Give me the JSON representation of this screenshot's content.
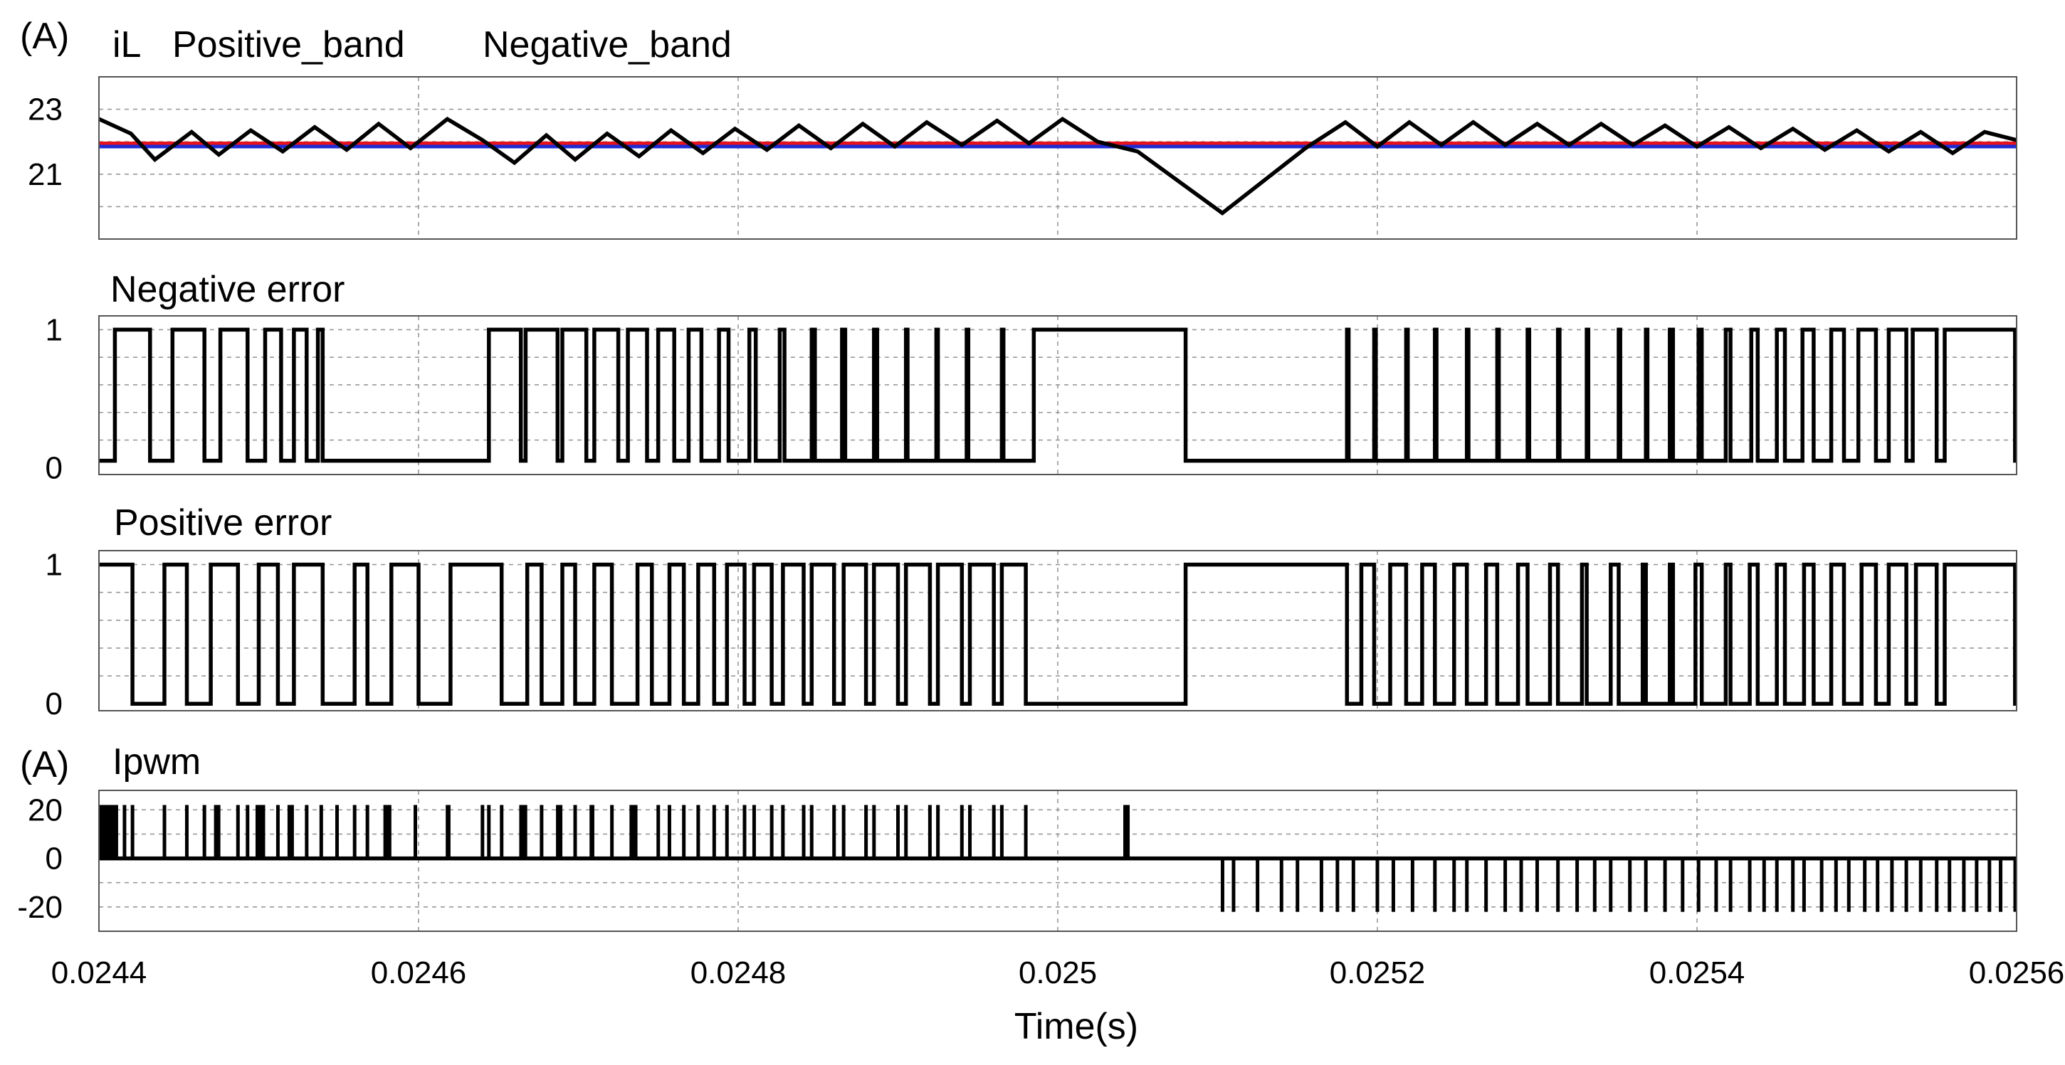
{
  "chart_data": [
    {
      "type": "line",
      "unit": "(A)",
      "title": "iL",
      "legend": [
        {
          "name": "Positive_band",
          "color": "#e8121c"
        },
        {
          "name": "Negative_band",
          "color": "#1f77c4"
        }
      ],
      "band_colors": {
        "positive": "#e8121c",
        "negative": "#1f2bd6"
      },
      "ylim": [
        19,
        24
      ],
      "yticks": [
        {
          "value": 23,
          "label": "23"
        },
        {
          "value": 21,
          "label": "21"
        }
      ],
      "grid_y": [
        23,
        22,
        21,
        20
      ],
      "bands": {
        "positive": 21.95,
        "negative": 21.85
      },
      "series": [
        {
          "color": "#000000",
          "points": [
            [
              0.0244,
              22.7
            ],
            [
              0.02442,
              22.25
            ],
            [
              0.024435,
              21.45
            ],
            [
              0.024458,
              22.3
            ],
            [
              0.024475,
              21.6
            ],
            [
              0.024495,
              22.35
            ],
            [
              0.024515,
              21.7
            ],
            [
              0.024535,
              22.45
            ],
            [
              0.024555,
              21.75
            ],
            [
              0.024575,
              22.55
            ],
            [
              0.024595,
              21.8
            ],
            [
              0.024618,
              22.7
            ],
            [
              0.02464,
              22.05
            ],
            [
              0.02466,
              21.35
            ],
            [
              0.02468,
              22.2
            ],
            [
              0.024698,
              21.45
            ],
            [
              0.024718,
              22.25
            ],
            [
              0.024738,
              21.55
            ],
            [
              0.024758,
              22.35
            ],
            [
              0.024778,
              21.65
            ],
            [
              0.024798,
              22.4
            ],
            [
              0.024818,
              21.75
            ],
            [
              0.024838,
              22.5
            ],
            [
              0.024858,
              21.8
            ],
            [
              0.024878,
              22.55
            ],
            [
              0.024898,
              21.85
            ],
            [
              0.024918,
              22.6
            ],
            [
              0.02494,
              21.9
            ],
            [
              0.024962,
              22.65
            ],
            [
              0.024982,
              21.95
            ],
            [
              0.025003,
              22.7
            ],
            [
              0.025025,
              22.0
            ],
            [
              0.02505,
              21.7
            ],
            [
              0.025103,
              19.8
            ],
            [
              0.025155,
              21.8
            ],
            [
              0.02518,
              22.6
            ],
            [
              0.0252,
              21.85
            ],
            [
              0.02522,
              22.6
            ],
            [
              0.02524,
              21.9
            ],
            [
              0.02526,
              22.6
            ],
            [
              0.02528,
              21.9
            ],
            [
              0.0253,
              22.55
            ],
            [
              0.02532,
              21.9
            ],
            [
              0.02534,
              22.55
            ],
            [
              0.02536,
              21.9
            ],
            [
              0.02538,
              22.5
            ],
            [
              0.0254,
              21.85
            ],
            [
              0.02542,
              22.45
            ],
            [
              0.02544,
              21.8
            ],
            [
              0.02546,
              22.4
            ],
            [
              0.02548,
              21.75
            ],
            [
              0.0255,
              22.35
            ],
            [
              0.02552,
              21.7
            ],
            [
              0.02554,
              22.3
            ],
            [
              0.02556,
              21.65
            ],
            [
              0.02558,
              22.3
            ],
            [
              0.0256,
              22.05
            ]
          ]
        }
      ]
    },
    {
      "type": "line",
      "title": "Negative error",
      "ylim": [
        -0.05,
        1.1
      ],
      "yticks": [
        {
          "value": 1,
          "label": "1"
        },
        {
          "value": 0,
          "label": "0"
        }
      ],
      "grid_y": [
        1,
        0.8,
        0.6,
        0.4,
        0.2
      ],
      "levels": [
        0.05,
        1
      ],
      "initial": 0.05,
      "transitions": [
        0.02441,
        0.024432,
        0.024446,
        0.024466,
        0.024476,
        0.024493,
        0.024504,
        0.024514,
        0.024522,
        0.02453,
        0.024537,
        0.02454,
        0.024644,
        0.024664,
        0.024667,
        0.024687,
        0.02469,
        0.024705,
        0.02471,
        0.024725,
        0.024731,
        0.024743,
        0.02475,
        0.02476,
        0.024769,
        0.024777,
        0.024788,
        0.024794,
        0.024807,
        0.024811,
        0.024826,
        0.024829,
        0.024846,
        0.024848,
        0.024865,
        0.024867,
        0.024885,
        0.024887,
        0.024905,
        0.024906,
        0.024924,
        0.024925,
        0.024943,
        0.024944,
        0.024965,
        0.024966,
        0.024985,
        0.02508,
        0.025181,
        0.025182,
        0.025198,
        0.025199,
        0.025218,
        0.025219,
        0.025236,
        0.025237,
        0.025256,
        0.025257,
        0.025275,
        0.025276,
        0.025294,
        0.025295,
        0.025313,
        0.025314,
        0.025331,
        0.025332,
        0.025351,
        0.025352,
        0.025368,
        0.025369,
        0.025383,
        0.025385,
        0.025401,
        0.025403,
        0.025418,
        0.025421,
        0.025434,
        0.025438,
        0.02545,
        0.025455,
        0.025466,
        0.025473,
        0.025484,
        0.025492,
        0.025501,
        0.025512,
        0.02552,
        0.025531,
        0.025535,
        0.02555,
        0.025555,
        0.025599
      ]
    },
    {
      "type": "line",
      "title": "Positive error",
      "ylim": [
        -0.05,
        1.1
      ],
      "yticks": [
        {
          "value": 1,
          "label": "1"
        },
        {
          "value": 0,
          "label": "0"
        }
      ],
      "grid_y": [
        1,
        0.8,
        0.6,
        0.4,
        0.2
      ],
      "levels": [
        0,
        1
      ],
      "initial": 1,
      "transitions": [
        0.024421,
        0.024441,
        0.024455,
        0.02447,
        0.024487,
        0.0245,
        0.024512,
        0.024522,
        0.02454,
        0.02456,
        0.024568,
        0.024583,
        0.0246,
        0.02462,
        0.024652,
        0.024668,
        0.024677,
        0.02469,
        0.024698,
        0.02471,
        0.024721,
        0.024737,
        0.024746,
        0.024757,
        0.024766,
        0.024775,
        0.024785,
        0.024793,
        0.024804,
        0.02481,
        0.024821,
        0.024828,
        0.024841,
        0.024846,
        0.02486,
        0.024866,
        0.02488,
        0.024885,
        0.0249,
        0.024905,
        0.02492,
        0.024925,
        0.02494,
        0.024945,
        0.02496,
        0.024965,
        0.02498,
        0.02508,
        0.025181,
        0.02519,
        0.025198,
        0.025208,
        0.025218,
        0.025228,
        0.025236,
        0.025248,
        0.025256,
        0.025268,
        0.025275,
        0.025288,
        0.025294,
        0.025308,
        0.025313,
        0.025328,
        0.025331,
        0.025346,
        0.025351,
        0.025366,
        0.025368,
        0.025383,
        0.025385,
        0.025399,
        0.025403,
        0.025418,
        0.025421,
        0.025433,
        0.025438,
        0.02545,
        0.025455,
        0.025467,
        0.025473,
        0.025484,
        0.025492,
        0.025503,
        0.025512,
        0.02552,
        0.025531,
        0.025537,
        0.02555,
        0.025555,
        0.025599
      ]
    },
    {
      "type": "line",
      "unit": "(A)",
      "title": "Ipwm",
      "ylim": [
        -30,
        28
      ],
      "yticks": [
        {
          "value": 20,
          "label": "20"
        },
        {
          "value": 0,
          "label": "0"
        },
        {
          "value": -20,
          "label": "-20"
        }
      ],
      "grid_y": [
        20,
        10,
        -10,
        -20
      ],
      "baseline": 0,
      "pulses": [
        {
          "from": 0.0244,
          "to": 0.024412,
          "level": 22
        },
        {
          "from": 0.024472,
          "to": 0.024476,
          "level": 22
        },
        {
          "from": 0.024498,
          "to": 0.024504,
          "level": 22
        },
        {
          "from": 0.024518,
          "to": 0.024522,
          "level": 22
        },
        {
          "from": 0.024538,
          "to": 0.02454,
          "level": 22
        },
        {
          "from": 0.024578,
          "to": 0.024583,
          "level": 22
        },
        {
          "from": 0.024617,
          "to": 0.02462,
          "level": 22
        },
        {
          "from": 0.024663,
          "to": 0.024668,
          "level": 22
        },
        {
          "from": 0.024686,
          "to": 0.02469,
          "level": 22
        },
        {
          "from": 0.024707,
          "to": 0.02471,
          "level": 22
        },
        {
          "from": 0.024732,
          "to": 0.024737,
          "level": 22
        },
        {
          "from": 0.025041,
          "to": 0.025045,
          "level": 22
        },
        {
          "from": 0.025102,
          "to": 0.025104,
          "level": -22
        },
        {
          "from": 0.025598,
          "to": 0.0256,
          "level": -22
        }
      ],
      "spikes_pos": [
        0.024416,
        0.024421,
        0.024441,
        0.024455,
        0.024466,
        0.024487,
        0.024493,
        0.024512,
        0.02453,
        0.024549,
        0.02456,
        0.024568,
        0.024598,
        0.02464,
        0.024644,
        0.024652,
        0.024677,
        0.024698,
        0.024721,
        0.02475,
        0.024757,
        0.024766,
        0.024775,
        0.024785,
        0.024793,
        0.024804,
        0.02481,
        0.024821,
        0.024828,
        0.024841,
        0.024846,
        0.02486,
        0.024866,
        0.02488,
        0.024885,
        0.0249,
        0.024905,
        0.02492,
        0.024925,
        0.02494,
        0.024945,
        0.02496,
        0.024965,
        0.02498
      ],
      "spikes_neg": [
        0.02511,
        0.025125,
        0.02514,
        0.02515,
        0.025165,
        0.025175,
        0.025185,
        0.0252,
        0.02521,
        0.025222,
        0.025236,
        0.025248,
        0.025256,
        0.025268,
        0.02528,
        0.02529,
        0.0253,
        0.025313,
        0.025325,
        0.025336,
        0.025346,
        0.025358,
        0.025368,
        0.02538,
        0.025391,
        0.025401,
        0.025412,
        0.025421,
        0.025433,
        0.025442,
        0.02545,
        0.02546,
        0.025467,
        0.025478,
        0.025487,
        0.025495,
        0.025505,
        0.025513,
        0.025522,
        0.025531,
        0.02554,
        0.02555,
        0.025558,
        0.025567,
        0.025575,
        0.025583,
        0.02559
      ]
    }
  ],
  "x_axis": {
    "xlabel": "Time(s)",
    "xlim": [
      0.0244,
      0.0256
    ],
    "ticks": [
      {
        "value": 0.0244,
        "label": "0.0244"
      },
      {
        "value": 0.0246,
        "label": "0.0246"
      },
      {
        "value": 0.0248,
        "label": "0.0248"
      },
      {
        "value": 0.025,
        "label": "0.025"
      },
      {
        "value": 0.0252,
        "label": "0.0252"
      },
      {
        "value": 0.0254,
        "label": "0.0254"
      },
      {
        "value": 0.0256,
        "label": "0.0256"
      }
    ]
  }
}
